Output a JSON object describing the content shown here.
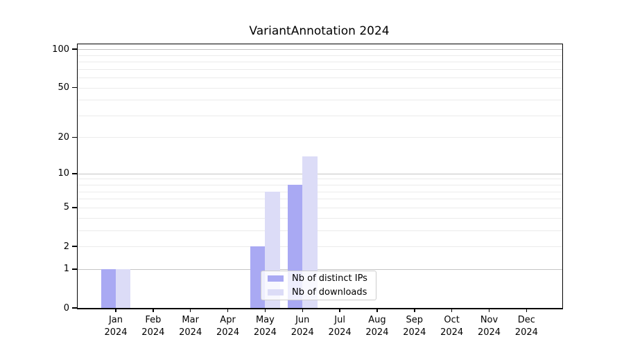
{
  "chart_data": {
    "type": "bar",
    "title": "VariantAnnotation 2024",
    "categories": [
      "Jan",
      "Feb",
      "Mar",
      "Apr",
      "May",
      "Jun",
      "Jul",
      "Aug",
      "Sep",
      "Oct",
      "Nov",
      "Dec"
    ],
    "year": "2024",
    "series": [
      {
        "name": "Nb of distinct IPs",
        "color": "#a9a9f3",
        "values": [
          1,
          0,
          0,
          0,
          2,
          8,
          0,
          0,
          0,
          0,
          0,
          0
        ]
      },
      {
        "name": "Nb of downloads",
        "color": "#dcdcf7",
        "values": [
          1,
          0,
          0,
          0,
          7,
          14,
          0,
          0,
          0,
          0,
          0,
          0
        ]
      }
    ],
    "yscale": "log1p",
    "ylim": [
      0,
      110
    ],
    "yticks": [
      0,
      1,
      2,
      5,
      10,
      20,
      50,
      100
    ],
    "major_gridlines": [
      1,
      10,
      100
    ],
    "minor_gridlines": [
      2,
      3,
      4,
      5,
      6,
      7,
      8,
      9,
      20,
      30,
      40,
      50,
      60,
      70,
      80,
      90
    ],
    "grid": true,
    "legend_position": "lower center-right inside plot"
  }
}
